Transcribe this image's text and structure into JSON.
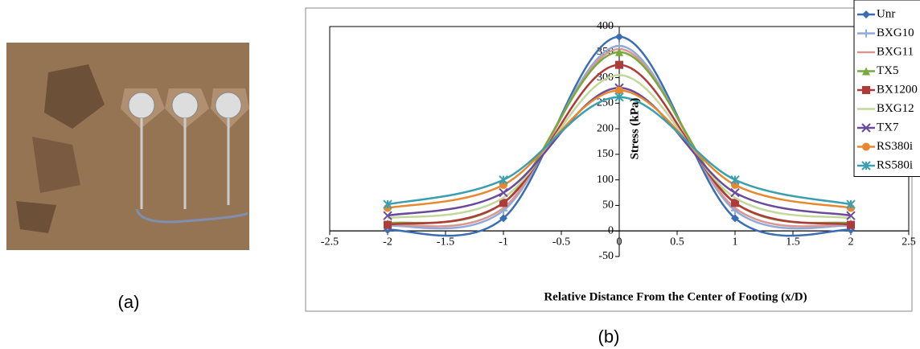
{
  "captions": {
    "a": "(a)",
    "b": "(b)"
  },
  "chart_data": {
    "type": "line",
    "ylabel": "Stress (kPa)",
    "xlabel": "Relative Distance From the Center of Footing (x/D)",
    "x": [
      -2,
      -1,
      0,
      1,
      2
    ],
    "xlim": [
      -2.5,
      2.5
    ],
    "xticks": [
      -2.5,
      -2,
      -1.5,
      -1,
      -0.5,
      0,
      0.5,
      1,
      1.5,
      2,
      2.5
    ],
    "ylim": [
      -50,
      400
    ],
    "yticks": [
      -50,
      0,
      50,
      100,
      150,
      200,
      250,
      300,
      350,
      400
    ],
    "smooth": true,
    "legend": "upper right",
    "series": [
      {
        "name": "Unr",
        "color": "#3b6db3",
        "marker": "diamond",
        "values": [
          2,
          25,
          380,
          25,
          2
        ]
      },
      {
        "name": "BXG10",
        "color": "#8faad9",
        "marker": "plus",
        "values": [
          10,
          40,
          362,
          40,
          10
        ]
      },
      {
        "name": "BXG11",
        "color": "#d99694",
        "marker": "none",
        "values": [
          12,
          45,
          356,
          45,
          12
        ]
      },
      {
        "name": "TX5",
        "color": "#77a93b",
        "marker": "triangle",
        "values": [
          15,
          55,
          350,
          55,
          15
        ]
      },
      {
        "name": "BX1200",
        "color": "#b03a3a",
        "marker": "square",
        "values": [
          12,
          55,
          325,
          55,
          12
        ]
      },
      {
        "name": "BXG12",
        "color": "#c3d69b",
        "marker": "none",
        "values": [
          25,
          65,
          305,
          65,
          25
        ]
      },
      {
        "name": "TX7",
        "color": "#6a4a9a",
        "marker": "x",
        "values": [
          30,
          75,
          280,
          75,
          30
        ]
      },
      {
        "name": "RS380i",
        "color": "#e8882e",
        "marker": "circle",
        "values": [
          45,
          90,
          275,
          90,
          45
        ]
      },
      {
        "name": "RS580i",
        "color": "#3a9fb0",
        "marker": "star",
        "values": [
          52,
          100,
          262,
          100,
          52
        ]
      }
    ]
  }
}
